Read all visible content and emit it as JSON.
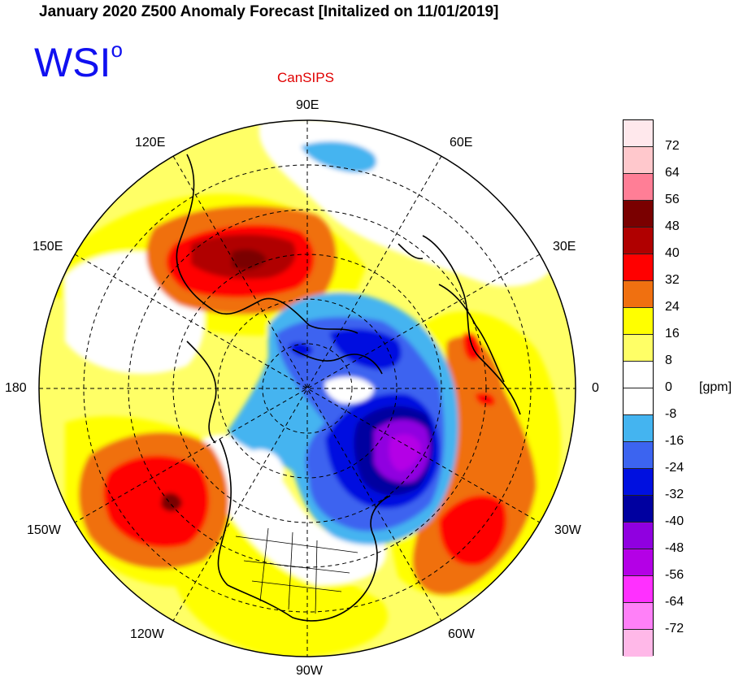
{
  "title": "January 2020 Z500 Anomaly Forecast [Initalized on 11/01/2019]",
  "logo": {
    "text": "WSI",
    "superscript": "o"
  },
  "model": "CanSIPS",
  "longitude_labels": {
    "top": "90E",
    "upper_left": "120E",
    "upper_right": "60E",
    "left_upper": "150E",
    "right_upper": "30E",
    "left": "180",
    "right": "0",
    "left_lower": "150W",
    "right_lower": "30W",
    "lower_left": "120W",
    "lower_right": "60W",
    "bottom": "90W"
  },
  "colorbar": {
    "units": "[gpm]",
    "colors": [
      "#ffe8ec",
      "#ffc8cc",
      "#ff7e96",
      "#7a0000",
      "#b00000",
      "#ff0000",
      "#f07010",
      "#ffff00",
      "#ffff66",
      "#ffffff",
      "#ffffff",
      "#44b4f0",
      "#3c64f0",
      "#0010e0",
      "#0000a0",
      "#9000e0",
      "#b400e6",
      "#ff30ff",
      "#ff80f8",
      "#ffb8e8"
    ],
    "ticks": [
      "72",
      "64",
      "56",
      "48",
      "40",
      "32",
      "24",
      "16",
      "8",
      "0",
      "-8",
      "-16",
      "-24",
      "-32",
      "-40",
      "-48",
      "-56",
      "-64",
      "-72"
    ]
  }
}
